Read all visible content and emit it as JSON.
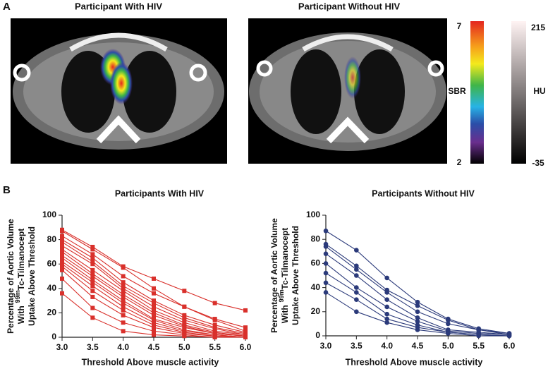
{
  "panel_a": {
    "label": "A",
    "left_title": "Participant With HIV",
    "right_title": "Participant Without HIV",
    "sbr": {
      "name": "SBR",
      "max": "7",
      "min": "2"
    },
    "hu": {
      "name": "HU",
      "max": "215",
      "min": "-35"
    }
  },
  "panel_b": {
    "label": "B"
  },
  "chart_data": [
    {
      "type": "line",
      "title": "Participants With HIV",
      "marker": "square",
      "color": "#d9302b",
      "x_label": "Threshold Above muscle activity",
      "y_label": {
        "line1": "Percentage of Aortic Volume",
        "line2_prefix": "With",
        "superscript": "99m",
        "line2_suffix": "Tc-Tilmanocept",
        "line3": "Uptake Above Threshold"
      },
      "x": [
        3,
        3.5,
        4,
        4.5,
        5,
        5.5,
        6
      ],
      "xlim": [
        3,
        6
      ],
      "xticks": [
        {
          "value": 3,
          "label": "3.0"
        },
        {
          "value": 3.5,
          "label": "3.5"
        },
        {
          "value": 4,
          "label": "4.0"
        },
        {
          "value": 4.5,
          "label": "4.5"
        },
        {
          "value": 5,
          "label": "5.0"
        },
        {
          "value": 5.5,
          "label": "5.5"
        },
        {
          "value": 6,
          "label": "6.0"
        }
      ],
      "ylim": [
        0,
        100
      ],
      "yticks": [
        0,
        20,
        40,
        60,
        80,
        100
      ],
      "series": [
        {
          "values": [
            88,
            74,
            58,
            48,
            38,
            28,
            22
          ]
        },
        {
          "values": [
            87,
            72,
            57,
            40,
            25,
            15,
            8
          ]
        },
        {
          "values": [
            83,
            68,
            50,
            36,
            25,
            14,
            5
          ]
        },
        {
          "values": [
            80,
            65,
            45,
            30,
            18,
            10,
            4
          ]
        },
        {
          "values": [
            78,
            62,
            42,
            28,
            16,
            8,
            3
          ]
        },
        {
          "values": [
            75,
            60,
            40,
            25,
            14,
            7,
            2
          ]
        },
        {
          "values": [
            72,
            55,
            38,
            22,
            12,
            5,
            2
          ]
        },
        {
          "values": [
            70,
            52,
            35,
            20,
            10,
            4,
            1
          ]
        },
        {
          "values": [
            67,
            50,
            33,
            18,
            9,
            3,
            1
          ]
        },
        {
          "values": [
            65,
            47,
            30,
            15,
            8,
            3,
            1
          ]
        },
        {
          "values": [
            62,
            45,
            28,
            14,
            6,
            2,
            0
          ]
        },
        {
          "values": [
            60,
            42,
            25,
            12,
            5,
            2,
            0
          ]
        },
        {
          "values": [
            58,
            38,
            22,
            10,
            4,
            1,
            0
          ]
        },
        {
          "values": [
            55,
            33,
            18,
            8,
            3,
            1,
            0
          ]
        },
        {
          "values": [
            48,
            24,
            12,
            5,
            2,
            0,
            0
          ]
        },
        {
          "values": [
            36,
            16,
            5,
            2,
            1,
            0,
            0
          ]
        }
      ]
    },
    {
      "type": "line",
      "title": "Participants Without HIV",
      "marker": "circle",
      "color": "#2b3a7a",
      "x_label": "Threshold Above muscle activity",
      "y_label": {
        "line1": "Percentage of Aortic Volume",
        "line2_prefix": "With",
        "superscript": "99m",
        "line2_suffix": "Tc-Tilmanocept",
        "line3": "Uptake Above Threshold"
      },
      "x": [
        3,
        3.5,
        4,
        4.5,
        5,
        5.5,
        6
      ],
      "xlim": [
        3,
        6
      ],
      "xticks": [
        {
          "value": 3,
          "label": "3.0"
        },
        {
          "value": 3.5,
          "label": "3.5"
        },
        {
          "value": 4,
          "label": "4.0"
        },
        {
          "value": 4.5,
          "label": "4.5"
        },
        {
          "value": 5,
          "label": "5.0"
        },
        {
          "value": 5.5,
          "label": "5.5"
        },
        {
          "value": 6,
          "label": "6.0"
        }
      ],
      "ylim": [
        0,
        100
      ],
      "yticks": [
        0,
        20,
        40,
        60,
        80,
        100
      ],
      "series": [
        {
          "values": [
            87,
            71,
            48,
            28,
            14,
            6,
            2
          ]
        },
        {
          "values": [
            76,
            58,
            38,
            25,
            13,
            5,
            2
          ]
        },
        {
          "values": [
            74,
            55,
            36,
            20,
            10,
            5,
            1
          ]
        },
        {
          "values": [
            68,
            50,
            30,
            15,
            5,
            3,
            1
          ]
        },
        {
          "values": [
            60,
            40,
            24,
            12,
            4,
            2,
            1
          ]
        },
        {
          "values": [
            52,
            36,
            18,
            9,
            3,
            1,
            0
          ]
        },
        {
          "values": [
            44,
            30,
            14,
            7,
            3,
            1,
            0
          ]
        },
        {
          "values": [
            36,
            20,
            11,
            5,
            2,
            0,
            0
          ]
        }
      ]
    }
  ]
}
